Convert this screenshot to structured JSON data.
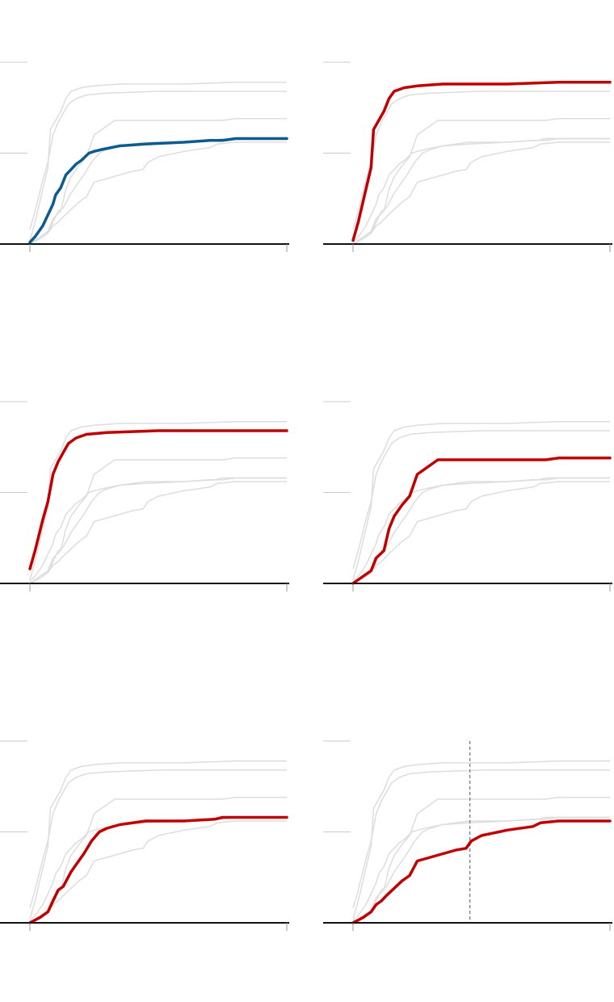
{
  "colors": {
    "background": "#ffffff",
    "axis": "#111111",
    "gridline": "#cccccc",
    "context_line": "#dddddd",
    "highlight_blue": "#0b5c8e",
    "highlight_red": "#c00000",
    "marker_line": "#555555"
  },
  "chart_data": {
    "type": "line",
    "layout": "small-multiples",
    "rows": 3,
    "cols": 2,
    "xlim": [
      0,
      1
    ],
    "ylim": [
      0,
      1
    ],
    "gridlines_y": [
      0.5,
      1.0
    ],
    "grid": true,
    "legend": "none",
    "series": [
      {
        "id": "s1",
        "points": [
          [
            0,
            0.01
          ],
          [
            0.02,
            0.04
          ],
          [
            0.05,
            0.1
          ],
          [
            0.07,
            0.16
          ],
          [
            0.09,
            0.22
          ],
          [
            0.1,
            0.27
          ],
          [
            0.12,
            0.31
          ],
          [
            0.14,
            0.38
          ],
          [
            0.16,
            0.41
          ],
          [
            0.18,
            0.44
          ],
          [
            0.2,
            0.46
          ],
          [
            0.23,
            0.5
          ],
          [
            0.25,
            0.51
          ],
          [
            0.28,
            0.52
          ],
          [
            0.35,
            0.54
          ],
          [
            0.45,
            0.55
          ],
          [
            0.6,
            0.56
          ],
          [
            0.7,
            0.57
          ],
          [
            0.75,
            0.57
          ],
          [
            0.8,
            0.58
          ],
          [
            1,
            0.58
          ]
        ]
      },
      {
        "id": "s2",
        "points": [
          [
            0,
            0.02
          ],
          [
            0.02,
            0.12
          ],
          [
            0.05,
            0.3
          ],
          [
            0.07,
            0.42
          ],
          [
            0.08,
            0.63
          ],
          [
            0.1,
            0.68
          ],
          [
            0.12,
            0.73
          ],
          [
            0.14,
            0.8
          ],
          [
            0.16,
            0.84
          ],
          [
            0.2,
            0.86
          ],
          [
            0.25,
            0.87
          ],
          [
            0.35,
            0.88
          ],
          [
            0.6,
            0.88
          ],
          [
            0.8,
            0.89
          ],
          [
            1,
            0.89
          ]
        ]
      },
      {
        "id": "s3",
        "points": [
          [
            0,
            0.08
          ],
          [
            0.02,
            0.18
          ],
          [
            0.05,
            0.35
          ],
          [
            0.07,
            0.45
          ],
          [
            0.09,
            0.6
          ],
          [
            0.11,
            0.67
          ],
          [
            0.13,
            0.72
          ],
          [
            0.15,
            0.77
          ],
          [
            0.18,
            0.8
          ],
          [
            0.22,
            0.82
          ],
          [
            0.3,
            0.83
          ],
          [
            0.5,
            0.84
          ],
          [
            0.7,
            0.84
          ],
          [
            1,
            0.84
          ]
        ]
      },
      {
        "id": "s4",
        "points": [
          [
            0,
            0.0
          ],
          [
            0.04,
            0.04
          ],
          [
            0.07,
            0.07
          ],
          [
            0.09,
            0.14
          ],
          [
            0.12,
            0.18
          ],
          [
            0.14,
            0.3
          ],
          [
            0.16,
            0.37
          ],
          [
            0.19,
            0.43
          ],
          [
            0.22,
            0.48
          ],
          [
            0.25,
            0.6
          ],
          [
            0.28,
            0.63
          ],
          [
            0.33,
            0.68
          ],
          [
            0.4,
            0.68
          ],
          [
            0.6,
            0.68
          ],
          [
            0.75,
            0.68
          ],
          [
            0.8,
            0.69
          ],
          [
            1,
            0.69
          ]
        ]
      },
      {
        "id": "s5",
        "points": [
          [
            0,
            0.0
          ],
          [
            0.04,
            0.03
          ],
          [
            0.07,
            0.06
          ],
          [
            0.09,
            0.12
          ],
          [
            0.11,
            0.18
          ],
          [
            0.13,
            0.2
          ],
          [
            0.16,
            0.28
          ],
          [
            0.18,
            0.32
          ],
          [
            0.21,
            0.38
          ],
          [
            0.24,
            0.45
          ],
          [
            0.27,
            0.5
          ],
          [
            0.3,
            0.52
          ],
          [
            0.35,
            0.54
          ],
          [
            0.45,
            0.56
          ],
          [
            0.6,
            0.56
          ],
          [
            0.72,
            0.57
          ],
          [
            0.75,
            0.58
          ],
          [
            0.8,
            0.58
          ],
          [
            1,
            0.58
          ]
        ]
      },
      {
        "id": "s6",
        "points": [
          [
            0,
            0.0
          ],
          [
            0.04,
            0.03
          ],
          [
            0.07,
            0.06
          ],
          [
            0.09,
            0.1
          ],
          [
            0.11,
            0.12
          ],
          [
            0.13,
            0.15
          ],
          [
            0.16,
            0.19
          ],
          [
            0.19,
            0.23
          ],
          [
            0.22,
            0.26
          ],
          [
            0.25,
            0.34
          ],
          [
            0.3,
            0.36
          ],
          [
            0.35,
            0.38
          ],
          [
            0.4,
            0.4
          ],
          [
            0.44,
            0.41
          ],
          [
            0.46,
            0.45
          ],
          [
            0.5,
            0.48
          ],
          [
            0.6,
            0.51
          ],
          [
            0.7,
            0.53
          ],
          [
            0.73,
            0.55
          ],
          [
            0.8,
            0.56
          ],
          [
            1,
            0.56
          ]
        ]
      }
    ],
    "panels": [
      {
        "highlight": "s1",
        "color": "#0b5c8e",
        "marker_x": null
      },
      {
        "highlight": "s2",
        "color": "#c00000",
        "marker_x": null
      },
      {
        "highlight": "s3",
        "color": "#c00000",
        "marker_x": null
      },
      {
        "highlight": "s4",
        "color": "#c00000",
        "marker_x": null
      },
      {
        "highlight": "s5",
        "color": "#c00000",
        "marker_x": null
      },
      {
        "highlight": "s6",
        "color": "#c00000",
        "marker_x": 0.455
      }
    ]
  }
}
